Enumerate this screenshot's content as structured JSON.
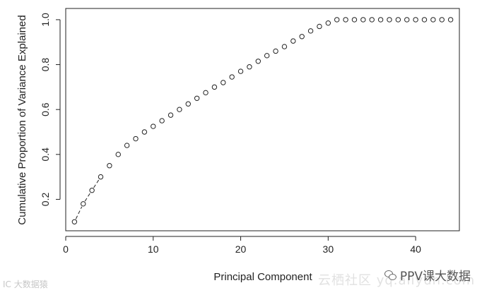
{
  "chart_data": {
    "type": "scatter",
    "title": "",
    "xlabel": "Principal Component",
    "ylabel": "Cumulative Proportion of Variance Explained",
    "xlim": [
      0,
      45
    ],
    "ylim": [
      0.06,
      1.05
    ],
    "xticks": [
      "0",
      "10",
      "20",
      "30",
      "40"
    ],
    "yticks": [
      "0.2",
      "0.4",
      "0.6",
      "0.8",
      "1.0"
    ],
    "grid": false,
    "series": [
      {
        "marker": "open-circle",
        "connector": "dashed",
        "connector_points": 4,
        "x": [
          1,
          2,
          3,
          4,
          5,
          6,
          7,
          8,
          9,
          10,
          11,
          12,
          13,
          14,
          15,
          16,
          17,
          18,
          19,
          20,
          21,
          22,
          23,
          24,
          25,
          26,
          27,
          28,
          29,
          30,
          31,
          32,
          33,
          34,
          35,
          36,
          37,
          38,
          39,
          40,
          41,
          42,
          43,
          44
        ],
        "y": [
          0.1,
          0.18,
          0.24,
          0.3,
          0.35,
          0.4,
          0.44,
          0.47,
          0.5,
          0.525,
          0.55,
          0.575,
          0.6,
          0.625,
          0.65,
          0.675,
          0.7,
          0.72,
          0.745,
          0.77,
          0.79,
          0.815,
          0.84,
          0.86,
          0.88,
          0.905,
          0.925,
          0.95,
          0.97,
          0.985,
          1.0,
          1.0,
          1.0,
          1.0,
          1.0,
          1.0,
          1.0,
          1.0,
          1.0,
          1.0,
          1.0,
          1.0,
          1.0,
          1.0
        ]
      }
    ]
  },
  "watermarks": {
    "brand": "PPV课大数据",
    "left": "IC 大数据猿",
    "middle": "云栖社区 yq.aliyun.com"
  },
  "colors": {
    "axis": "#222222",
    "marker_stroke": "#222222"
  }
}
